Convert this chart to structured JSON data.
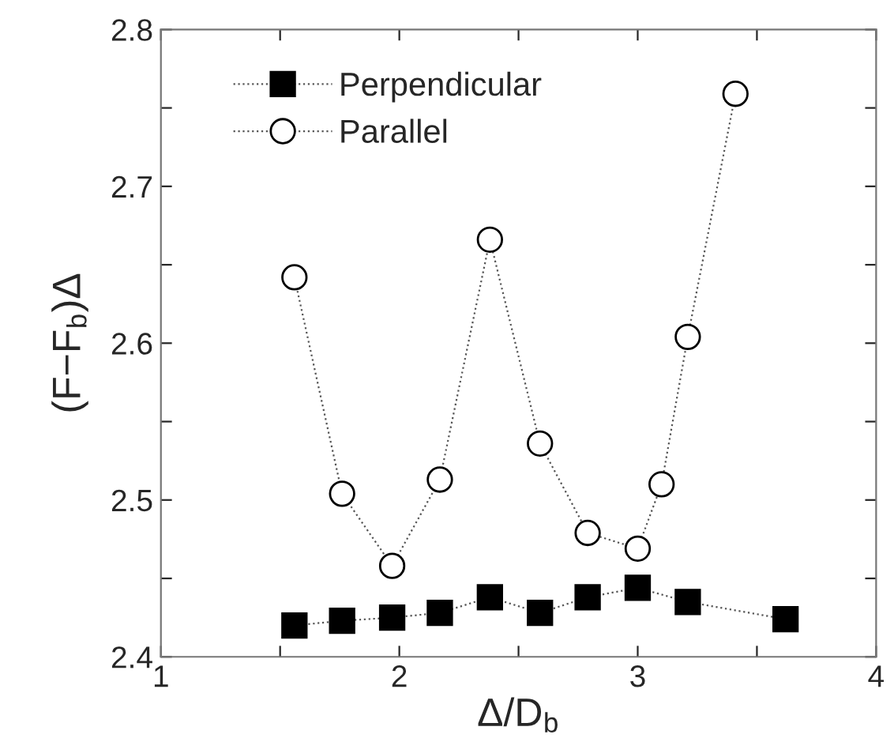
{
  "chart_data": {
    "type": "line",
    "xlabel": "Δ/D$_{b}$",
    "ylabel": "(F−F$_{b}$)Δ",
    "xlim": [
      1,
      4
    ],
    "xticks": [
      1,
      {
        "value": 1.5,
        "label": null
      },
      2,
      {
        "value": 2.5,
        "label": null
      },
      3,
      {
        "value": 3.5,
        "label": null
      },
      4
    ],
    "ylim": [
      2.4,
      2.8
    ],
    "yticks": [
      2.4,
      {
        "value": 2.45,
        "label": null
      },
      2.5,
      {
        "value": 2.55,
        "label": null
      },
      2.6,
      {
        "value": 2.65,
        "label": null
      },
      2.7,
      {
        "value": 2.75,
        "label": null
      },
      2.8
    ],
    "grid": false,
    "legend": "top left",
    "line_style": "dotted",
    "series": [
      {
        "name": "Perpendicular",
        "color": "#000000",
        "marker": "square",
        "x": [
          1.56,
          1.76,
          1.97,
          2.17,
          2.38,
          2.59,
          2.79,
          3.0,
          3.21,
          3.62
        ],
        "values": [
          2.42,
          2.423,
          2.425,
          2.428,
          2.438,
          2.428,
          2.438,
          2.444,
          2.435,
          2.424
        ]
      },
      {
        "name": "Parallel",
        "color": "#000000",
        "marker": "circle",
        "x": [
          1.56,
          1.76,
          1.97,
          2.17,
          2.38,
          2.59,
          2.79,
          3.0,
          3.1,
          3.21,
          3.41
        ],
        "values": [
          2.642,
          2.504,
          2.458,
          2.513,
          2.666,
          2.536,
          2.479,
          2.469,
          2.51,
          2.604,
          2.759
        ]
      }
    ]
  }
}
